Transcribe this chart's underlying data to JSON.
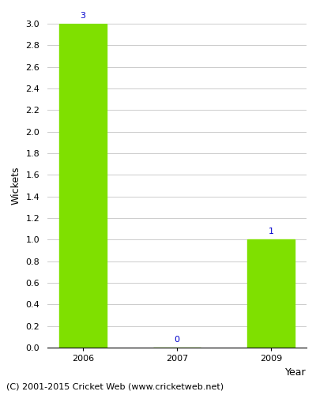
{
  "categories": [
    "2006",
    "2007",
    "2009"
  ],
  "values": [
    3,
    0,
    1
  ],
  "bar_color": "#7FE000",
  "bar_width": 0.5,
  "xlabel": "Year",
  "ylabel": "Wickets",
  "ylim": [
    0,
    3.0
  ],
  "yticks": [
    0.0,
    0.2,
    0.4,
    0.6,
    0.8,
    1.0,
    1.2,
    1.4,
    1.6,
    1.8,
    2.0,
    2.2,
    2.4,
    2.6,
    2.8,
    3.0
  ],
  "annotation_color": "#0000CC",
  "annotation_fontsize": 8,
  "axis_label_fontsize": 9,
  "tick_fontsize": 8,
  "footer_text": "(C) 2001-2015 Cricket Web (www.cricketweb.net)",
  "footer_fontsize": 8,
  "background_color": "#ffffff",
  "grid_color": "#cccccc"
}
